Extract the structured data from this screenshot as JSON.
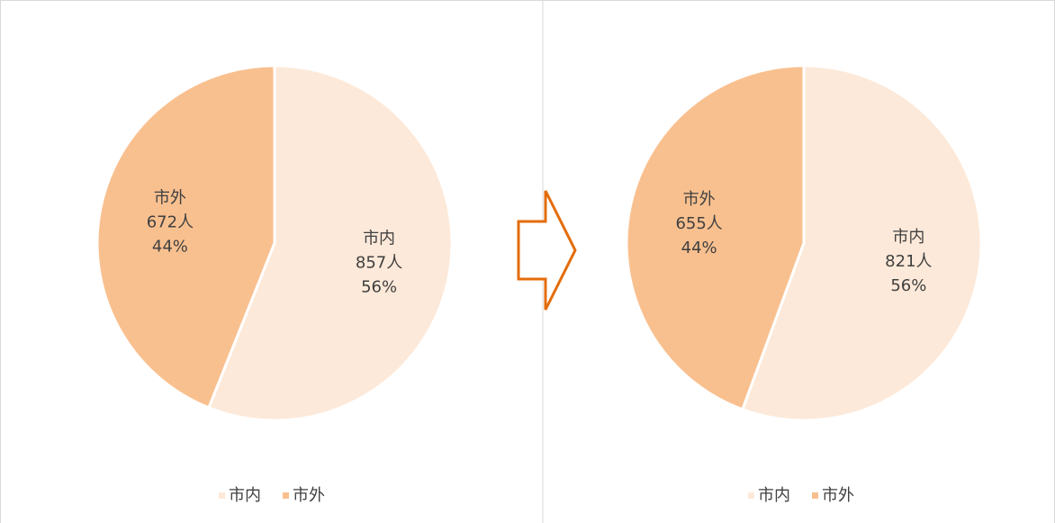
{
  "chart_data": [
    {
      "type": "pie",
      "categories": [
        "市内",
        "市外"
      ],
      "values": [
        857,
        672
      ],
      "value_labels": [
        "857人",
        "672人"
      ],
      "percent_labels": [
        "56%",
        "44%"
      ],
      "colors": [
        "#fde9d9",
        "#f9c08f"
      ],
      "legend": "bottom"
    },
    {
      "type": "pie",
      "categories": [
        "市内",
        "市外"
      ],
      "values": [
        821,
        655
      ],
      "value_labels": [
        "821人",
        "655人"
      ],
      "percent_labels": [
        "56%",
        "44%"
      ],
      "colors": [
        "#fde9d9",
        "#f9c08f"
      ],
      "legend": "bottom"
    }
  ]
}
